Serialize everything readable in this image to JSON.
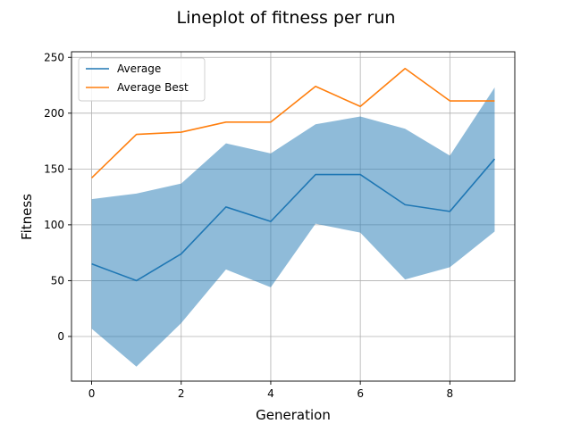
{
  "chart_data": {
    "type": "line",
    "title": "Lineplot of fitness per run",
    "xlabel": "Generation",
    "ylabel": "Fitness",
    "xlim": [
      -0.45,
      9.45
    ],
    "ylim": [
      -40,
      255
    ],
    "xticks": [
      0,
      2,
      4,
      6,
      8
    ],
    "yticks": [
      0,
      50,
      100,
      150,
      200,
      250
    ],
    "grid": true,
    "legend_position": "upper left",
    "x": [
      0,
      1,
      2,
      3,
      4,
      5,
      6,
      7,
      8,
      9
    ],
    "series": [
      {
        "name": "Average",
        "color": "#1f77b4",
        "values": [
          65,
          50,
          74,
          116,
          103,
          145,
          145,
          118,
          112,
          159
        ]
      },
      {
        "name": "Average Best",
        "color": "#ff7f0e",
        "values": [
          142,
          181,
          183,
          192,
          192,
          224,
          206,
          240,
          211,
          211
        ]
      }
    ],
    "band": {
      "color": "#1f77b4",
      "opacity": 0.5,
      "upper": [
        123,
        128,
        137,
        173,
        164,
        190,
        197,
        186,
        162,
        223
      ],
      "lower": [
        7,
        -27,
        12,
        60,
        44,
        101,
        93,
        51,
        62,
        94
      ]
    }
  }
}
